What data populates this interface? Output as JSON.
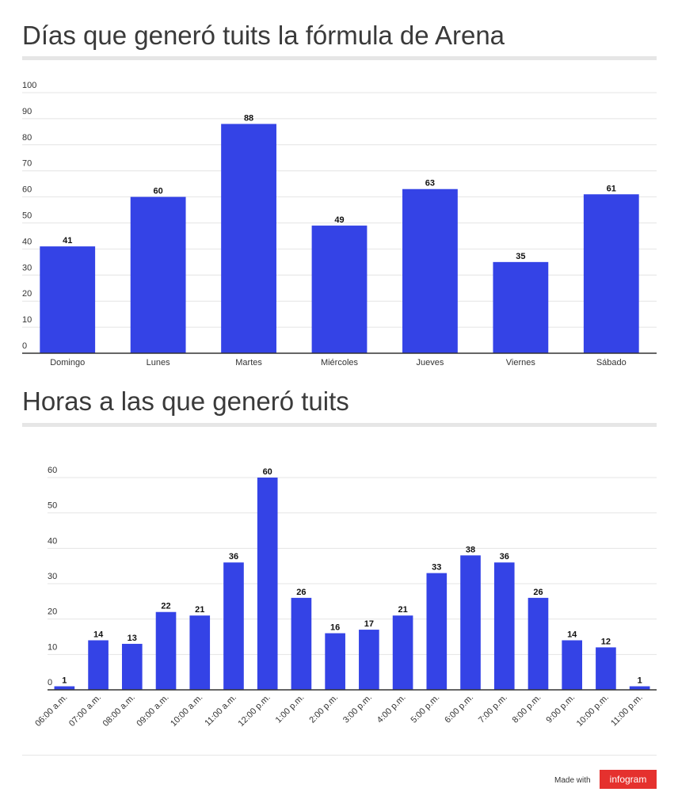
{
  "chart_data": [
    {
      "type": "bar",
      "title": "Días que generó tuits la fórmula de Arena",
      "categories": [
        "Domingo",
        "Lunes",
        "Martes",
        "Miércoles",
        "Jueves",
        "Viernes",
        "Sábado"
      ],
      "values": [
        41,
        60,
        88,
        49,
        63,
        35,
        61
      ],
      "ylim": [
        0,
        100
      ],
      "yticks": [
        0,
        10,
        20,
        30,
        40,
        50,
        60,
        70,
        80,
        90,
        100
      ],
      "grid": true,
      "color": "#3443e6"
    },
    {
      "type": "bar",
      "title": "Horas a las que generó tuits",
      "categories": [
        "06:00 a.m.",
        "07:00 a.m.",
        "08:00 a.m.",
        "09:00 a.m.",
        "10:00 a.m.",
        "11:00 a.m.",
        "12:00 p.m.",
        "1:00 p.m.",
        "2:00 p.m.",
        "3:00 p.m.",
        "4:00 p.m.",
        "5:00 p.m.",
        "6:00 p.m.",
        "7:00 p.m.",
        "8:00 p.m.",
        "9:00 p.m.",
        "10:00 p.m.",
        "11:00 p.m."
      ],
      "values": [
        1,
        14,
        13,
        22,
        21,
        36,
        60,
        26,
        16,
        17,
        21,
        33,
        38,
        36,
        26,
        14,
        12,
        1
      ],
      "ylim": [
        0,
        60
      ],
      "yticks": [
        0,
        10,
        20,
        30,
        40,
        50,
        60
      ],
      "grid": true,
      "color": "#3443e6"
    }
  ],
  "footer": {
    "made_with": "Made with",
    "brand": "infogram",
    "brand_color": "#e5312e"
  }
}
